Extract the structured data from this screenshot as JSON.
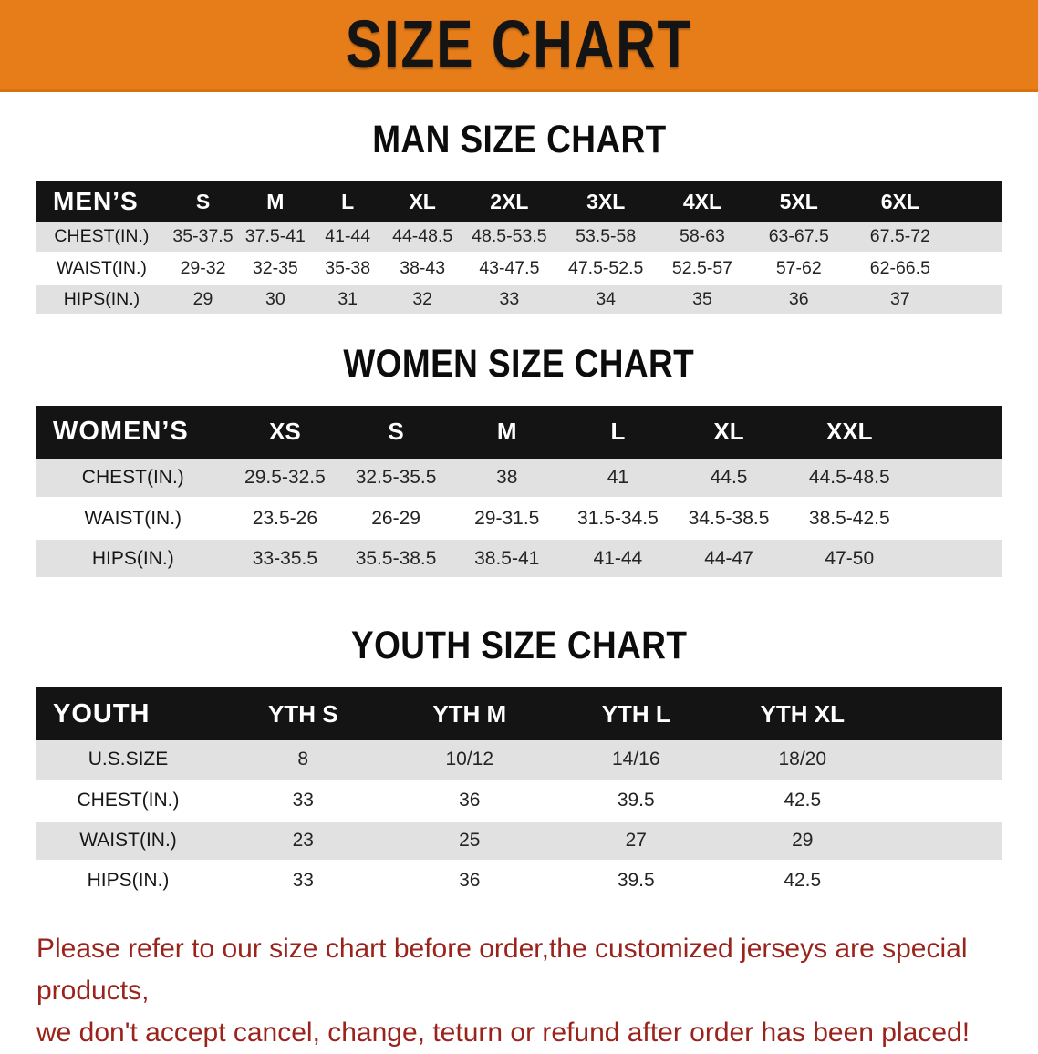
{
  "banner": {
    "title": "SIZE CHART",
    "bg_color": "#e67d19"
  },
  "colors": {
    "header_bar": "#141414",
    "stripe_row": "#e1e1e1",
    "note_text": "#9a231c"
  },
  "tables": [
    {
      "section_title": "MAN SIZE CHART",
      "corner_label": "MEN’S",
      "columns": [
        "S",
        "M",
        "L",
        "XL",
        "2XL",
        "3XL",
        "4XL",
        "5XL",
        "6XL"
      ],
      "rows": [
        {
          "label": "CHEST(IN.)",
          "values": [
            "35-37.5",
            "37.5-41",
            "41-44",
            "44-48.5",
            "48.5-53.5",
            "53.5-58",
            "58-63",
            "63-67.5",
            "67.5-72"
          ]
        },
        {
          "label": "WAIST(IN.)",
          "values": [
            "29-32",
            "32-35",
            "35-38",
            "38-43",
            "43-47.5",
            "47.5-52.5",
            "52.5-57",
            "57-62",
            "62-66.5"
          ]
        },
        {
          "label": "HIPS(IN.)",
          "values": [
            "29",
            "30",
            "31",
            "32",
            "33",
            "34",
            "35",
            "36",
            "37"
          ]
        }
      ]
    },
    {
      "section_title": "WOMEN SIZE CHART",
      "corner_label": "WOMEN’S",
      "columns": [
        "XS",
        "S",
        "M",
        "L",
        "XL",
        "XXL"
      ],
      "rows": [
        {
          "label": "CHEST(IN.)",
          "values": [
            "29.5-32.5",
            "32.5-35.5",
            "38",
            "41",
            "44.5",
            "44.5-48.5"
          ]
        },
        {
          "label": "WAIST(IN.)",
          "values": [
            "23.5-26",
            "26-29",
            "29-31.5",
            "31.5-34.5",
            "34.5-38.5",
            "38.5-42.5"
          ]
        },
        {
          "label": "HIPS(IN.)",
          "values": [
            "33-35.5",
            "35.5-38.5",
            "38.5-41",
            "41-44",
            "44-47",
            "47-50"
          ]
        }
      ]
    },
    {
      "section_title": "YOUTH SIZE CHART",
      "corner_label": "YOUTH",
      "columns": [
        "YTH S",
        "YTH M",
        "YTH L",
        "YTH XL"
      ],
      "rows": [
        {
          "label": "U.S.SIZE",
          "values": [
            "8",
            "10/12",
            "14/16",
            "18/20"
          ]
        },
        {
          "label": "CHEST(IN.)",
          "values": [
            "33",
            "36",
            "39.5",
            "42.5"
          ]
        },
        {
          "label": "WAIST(IN.)",
          "values": [
            "23",
            "25",
            "27",
            "29"
          ]
        },
        {
          "label": "HIPS(IN.)",
          "values": [
            "33",
            "36",
            "39.5",
            "42.5"
          ]
        }
      ]
    }
  ],
  "footer": {
    "line1": "Please refer to our size chart before order,the customized jerseys are special products,",
    "line2": "we don't accept cancel, change, teturn or refund after order has been placed!"
  }
}
